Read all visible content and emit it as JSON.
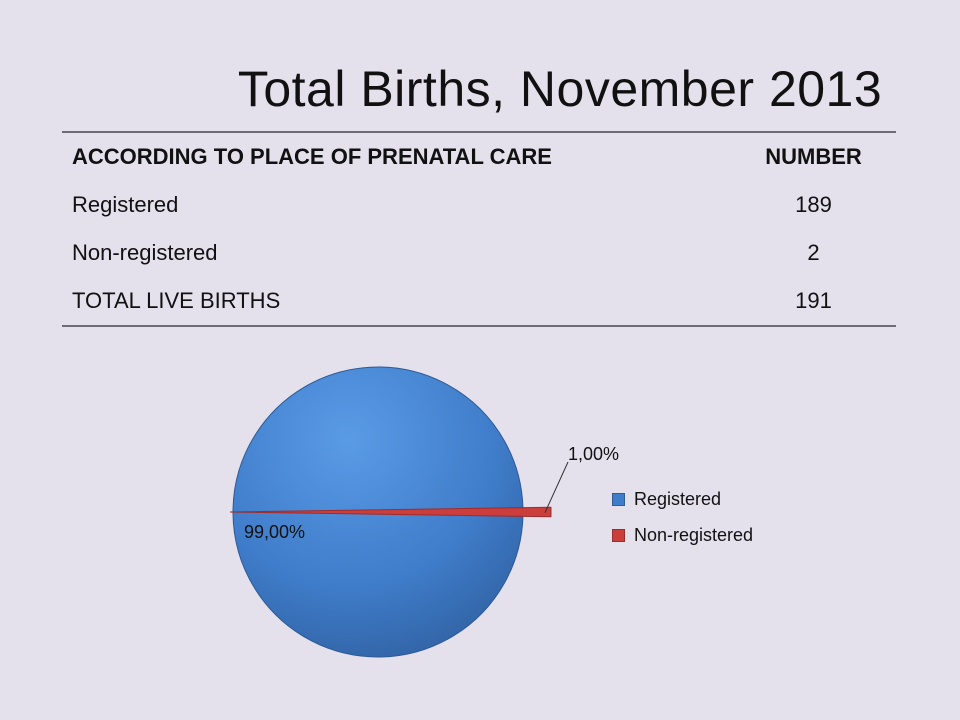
{
  "title": "Total Births, November 2013",
  "table": {
    "headers": [
      "ACCORDING TO PLACE OF PRENATAL CARE",
      "NUMBER"
    ],
    "rows": [
      [
        "Registered",
        "189"
      ],
      [
        "Non-registered",
        "2"
      ],
      [
        "TOTAL LIVE BIRTHS",
        "191"
      ]
    ]
  },
  "chart_data": {
    "type": "pie",
    "categories": [
      "Registered",
      "Non-registered"
    ],
    "values": [
      99.0,
      1.0
    ],
    "data_labels": [
      "99,00%",
      "1,00%"
    ],
    "colors": [
      "#3f7cc9",
      "#cc3e3c"
    ],
    "legend_position": "right"
  }
}
